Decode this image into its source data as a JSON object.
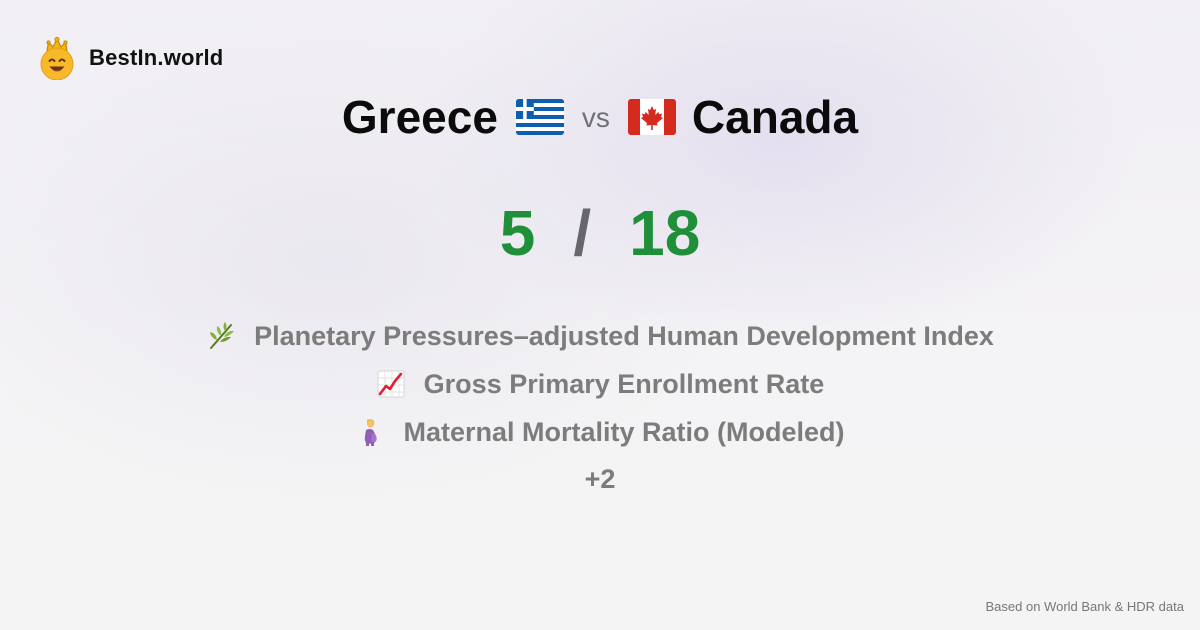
{
  "brand": {
    "name": "BestIn.world",
    "logo_icon": "smiling-crown-face-icon"
  },
  "comparison": {
    "left_country": "Greece",
    "left_flag_icon": "greece-flag-icon",
    "vs_label": "vs",
    "right_country": "Canada",
    "right_flag_icon": "canada-flag-icon"
  },
  "score": {
    "left": "5",
    "separator": "/",
    "right": "18",
    "color": "#1f8f3a"
  },
  "metrics": [
    {
      "icon": "herb-icon",
      "label": "Planetary Pressures–adjusted Human Development Index"
    },
    {
      "icon": "chart-increasing-icon",
      "label": "Gross Primary Enrollment Rate"
    },
    {
      "icon": "pregnant-woman-icon",
      "label": "Maternal Mortality Ratio (Modeled)"
    }
  ],
  "more_count": "+2",
  "footer": {
    "source": "Based on World Bank & HDR data"
  }
}
